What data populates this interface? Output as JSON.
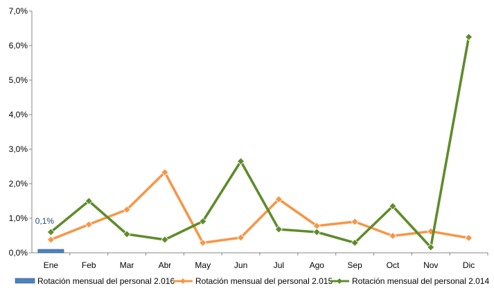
{
  "chart_data": {
    "type": "line",
    "categories": [
      "Ene",
      "Feb",
      "Mar",
      "Abr",
      "May",
      "Jun",
      "Jul",
      "Ago",
      "Sep",
      "Oct",
      "Nov",
      "Dic"
    ],
    "y_ticks": [
      "0,0%",
      "1,0%",
      "2,0%",
      "3,0%",
      "4,0%",
      "5,0%",
      "6,0%",
      "7,0%"
    ],
    "ylim": [
      0,
      7
    ],
    "grid": false,
    "legend_position": "bottom",
    "series": [
      {
        "name": "Rotación mensual del personal 2.016",
        "type": "bar",
        "color": "#4f81bd",
        "values": [
          0.1,
          null,
          null,
          null,
          null,
          null,
          null,
          null,
          null,
          null,
          null,
          null
        ],
        "data_labels": [
          "0,1%"
        ]
      },
      {
        "name": "Rotación mensual del personal 2.015",
        "type": "line",
        "color": "#f79646",
        "values": [
          0.38,
          0.82,
          1.25,
          2.33,
          0.29,
          0.44,
          1.55,
          0.78,
          0.9,
          0.49,
          0.62,
          0.43
        ]
      },
      {
        "name": "Rotación mensual del personal 2.014",
        "type": "line",
        "color": "#5e8c2a",
        "values": [
          0.6,
          1.5,
          0.54,
          0.38,
          0.91,
          2.65,
          0.68,
          0.6,
          0.29,
          1.35,
          0.16,
          6.25
        ]
      }
    ]
  }
}
